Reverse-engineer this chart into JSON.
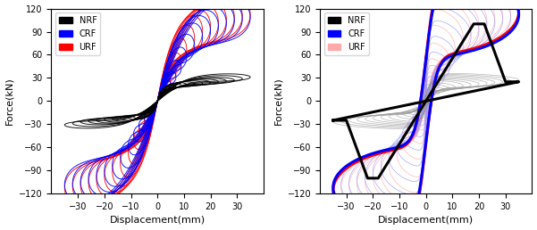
{
  "xlim": [
    -40,
    40
  ],
  "ylim": [
    -120,
    120
  ],
  "yticks": [
    -120,
    -90,
    -60,
    -30,
    0,
    30,
    60,
    90,
    120
  ],
  "xticks": [
    -30,
    -20,
    -10,
    0,
    10,
    20,
    30
  ],
  "xlabel": "Displacement(mm)",
  "ylabel": "Force(kN)",
  "nrf_color_left": "#000000",
  "crf_color_left": "#0000FF",
  "urf_color_left": "#FF0000",
  "nrf_color_right_thin": "#999999",
  "crf_color_right_thin": "#9999FF",
  "urf_color_right_thin": "#FFaaaa",
  "nrf_envelope_color": "#000000",
  "crf_envelope_color": "#0000FF",
  "urf_envelope_color": "#FF0000",
  "fig_width": 6.01,
  "fig_height": 2.58,
  "dpi": 100,
  "amps_left": [
    2,
    3,
    5,
    7,
    9,
    11,
    14,
    17,
    20,
    23,
    26,
    29,
    32,
    35
  ],
  "force_nrf_left": [
    8,
    12,
    16,
    18,
    20,
    21,
    22,
    23,
    24,
    25,
    26,
    27,
    29,
    31
  ],
  "force_crf_left": [
    10,
    15,
    22,
    32,
    44,
    58,
    72,
    84,
    92,
    98,
    102,
    106,
    108,
    110
  ],
  "force_urf_left": [
    12,
    18,
    26,
    38,
    52,
    68,
    82,
    92,
    98,
    103,
    107,
    110,
    112,
    114
  ],
  "amps_right": [
    2,
    3,
    5,
    7,
    9,
    11,
    14,
    17,
    20,
    23,
    26,
    29,
    32,
    35
  ],
  "force_nrf_right": [
    6,
    8,
    11,
    14,
    16,
    18,
    20,
    21,
    22,
    23,
    24,
    25,
    26,
    27
  ],
  "force_crf_right": [
    10,
    15,
    22,
    32,
    44,
    58,
    72,
    84,
    92,
    98,
    102,
    106,
    108,
    112
  ],
  "force_urf_right": [
    12,
    18,
    26,
    38,
    52,
    68,
    82,
    92,
    98,
    103,
    107,
    110,
    112,
    116
  ]
}
